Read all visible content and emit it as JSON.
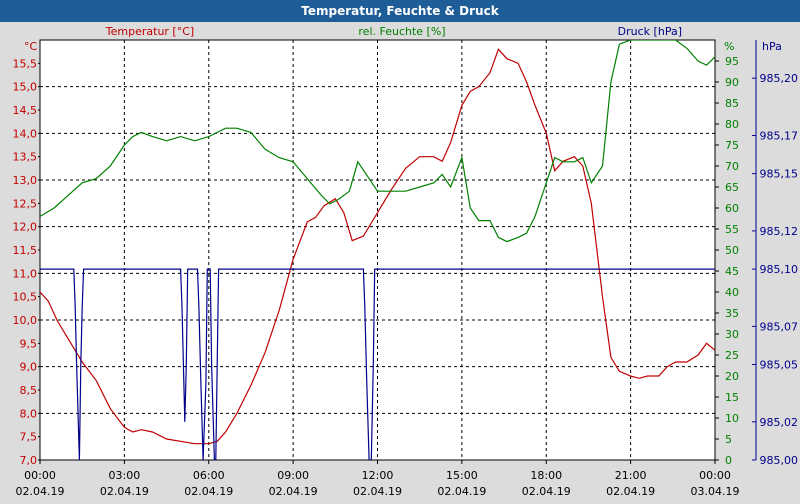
{
  "chart_data": {
    "type": "line",
    "title": "Temperatur, Feuchte & Druck",
    "colors": {
      "temperature": "#c00000",
      "humidity": "#008000",
      "pressure": "#00008b",
      "title_bar": "#1f5d99",
      "background": "#dcdcdc"
    },
    "grid": true,
    "x": {
      "type": "time",
      "range": [
        "02.04.19 00:00",
        "03.04.19 00:00"
      ],
      "range_hours": [
        0,
        24
      ],
      "ticks_hours": [
        0,
        3,
        6,
        9,
        12,
        15,
        18,
        21,
        24
      ],
      "tick_labels_time": [
        "00:00",
        "03:00",
        "06:00",
        "09:00",
        "12:00",
        "15:00",
        "18:00",
        "21:00",
        "00:00"
      ],
      "tick_labels_date": [
        "02.04.19",
        "02.04.19",
        "02.04.19",
        "02.04.19",
        "02.04.19",
        "02.04.19",
        "02.04.19",
        "02.04.19",
        "03.04.19"
      ]
    },
    "axes": {
      "temperature": {
        "label": "Temperatur [°C]",
        "unit": "°C",
        "range": [
          7.0,
          16.0
        ],
        "ticks": [
          "7,0",
          "7,5",
          "8,0",
          "8,5",
          "9,0",
          "9,5",
          "10,0",
          "10,5",
          "11,0",
          "11,5",
          "12,0",
          "12,5",
          "13,0",
          "13,5",
          "14,0",
          "14,5",
          "15,0",
          "15,5"
        ]
      },
      "humidity": {
        "label": "rel. Feuchte [%]",
        "unit": "%",
        "range": [
          0,
          100
        ],
        "ticks": [
          "0",
          "5",
          "10",
          "15",
          "20",
          "25",
          "30",
          "35",
          "40",
          "45",
          "50",
          "55",
          "60",
          "65",
          "70",
          "75",
          "80",
          "85",
          "90",
          "95"
        ]
      },
      "pressure": {
        "label": "Druck [hPa]",
        "unit": "hPa",
        "range": [
          985.0,
          985.22
        ],
        "ticks": [
          "985,00",
          "985,02",
          "985,05",
          "985,07",
          "985,10",
          "985,12",
          "985,15",
          "985,17",
          "985,20"
        ]
      }
    },
    "series": [
      {
        "name": "Temperatur [°C]",
        "axis": "temperature",
        "x_hours": [
          0,
          0.3,
          0.6,
          1.0,
          1.5,
          2.0,
          2.5,
          3.0,
          3.3,
          3.6,
          4.0,
          4.5,
          5.0,
          5.5,
          6.0,
          6.3,
          6.6,
          7.0,
          7.5,
          8.0,
          8.5,
          9.0,
          9.5,
          9.8,
          10.1,
          10.5,
          10.8,
          11.1,
          11.5,
          11.8,
          12.1,
          12.5,
          13.0,
          13.5,
          14.0,
          14.3,
          14.6,
          15.0,
          15.3,
          15.6,
          16.0,
          16.3,
          16.6,
          17.0,
          17.3,
          17.6,
          18.0,
          18.3,
          18.6,
          19.0,
          19.3,
          19.6,
          20.0,
          20.3,
          20.6,
          21.0,
          21.3,
          21.6,
          22.0,
          22.3,
          22.6,
          23.0,
          23.4,
          23.7,
          24.0
        ],
        "values": [
          10.6,
          10.4,
          10.0,
          9.6,
          9.1,
          8.7,
          8.1,
          7.7,
          7.6,
          7.65,
          7.6,
          7.45,
          7.4,
          7.35,
          7.35,
          7.4,
          7.6,
          8.0,
          8.6,
          9.3,
          10.2,
          11.3,
          12.1,
          12.2,
          12.45,
          12.6,
          12.3,
          11.7,
          11.8,
          12.1,
          12.4,
          12.8,
          13.25,
          13.5,
          13.5,
          13.4,
          13.8,
          14.6,
          14.9,
          15.0,
          15.3,
          15.8,
          15.6,
          15.5,
          15.1,
          14.6,
          14.0,
          13.2,
          13.4,
          13.5,
          13.3,
          12.5,
          10.5,
          9.2,
          8.9,
          8.8,
          8.75,
          8.8,
          8.8,
          9.0,
          9.1,
          9.1,
          9.25,
          9.5,
          9.35
        ]
      },
      {
        "name": "rel. Feuchte [%]",
        "axis": "humidity",
        "x_hours": [
          0,
          0.5,
          1.0,
          1.5,
          2.0,
          2.5,
          3.0,
          3.3,
          3.6,
          4.0,
          4.5,
          5.0,
          5.5,
          6.0,
          6.3,
          6.6,
          7.0,
          7.5,
          8.0,
          8.5,
          9.0,
          9.5,
          10.0,
          10.3,
          10.6,
          11.0,
          11.3,
          11.6,
          12.0,
          12.5,
          13.0,
          13.5,
          14.0,
          14.3,
          14.6,
          15.0,
          15.3,
          15.6,
          16.0,
          16.3,
          16.6,
          17.0,
          17.3,
          17.6,
          18.0,
          18.3,
          18.6,
          19.0,
          19.3,
          19.6,
          20.0,
          20.3,
          20.6,
          21.0,
          21.3,
          21.6,
          22.0,
          22.3,
          22.6,
          23.0,
          23.4,
          23.7,
          24.0
        ],
        "values": [
          58,
          60,
          63,
          66,
          67,
          70,
          75,
          77,
          78,
          77,
          76,
          77,
          76,
          77,
          78,
          79,
          79,
          78,
          74,
          72,
          71,
          67,
          63,
          61,
          62,
          64,
          71,
          68,
          64,
          64,
          64,
          65,
          66,
          68,
          65,
          72,
          60,
          57,
          57,
          53,
          52,
          53,
          54,
          58,
          66,
          72,
          71,
          71,
          72,
          66,
          70,
          90,
          99,
          100,
          100,
          100,
          100,
          100,
          100,
          98,
          95,
          94,
          96
        ]
      },
      {
        "name": "Druck [hPa]",
        "axis": "pressure",
        "x_hours": [
          0,
          1.2,
          1.25,
          1.3,
          1.4,
          1.45,
          1.5,
          1.55,
          5.0,
          5.05,
          5.15,
          5.2,
          5.25,
          5.35,
          5.4,
          5.6,
          5.65,
          5.72,
          5.8,
          5.9,
          5.95,
          6.05,
          6.1,
          6.2,
          6.25,
          6.3,
          6.35,
          11.5,
          11.55,
          11.62,
          11.7,
          11.78,
          11.85,
          11.9,
          24.0
        ],
        "values": [
          985.1,
          985.1,
          985.08,
          985.05,
          985.0,
          985.05,
          985.08,
          985.1,
          985.1,
          985.08,
          985.02,
          985.05,
          985.1,
          985.1,
          985.1,
          985.1,
          985.08,
          985.04,
          985.0,
          985.04,
          985.1,
          985.1,
          985.05,
          985.0,
          985.0,
          985.05,
          985.1,
          985.1,
          985.08,
          985.04,
          985.0,
          985.0,
          985.05,
          985.1,
          985.1
        ]
      }
    ]
  }
}
